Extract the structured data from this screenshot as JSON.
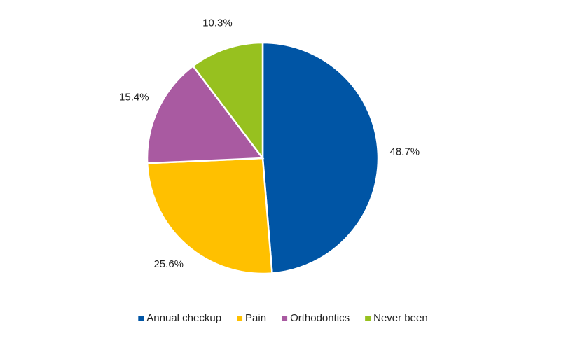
{
  "chart_data": {
    "type": "pie",
    "categories": [
      "Annual checkup",
      "Pain",
      "Orthodontics",
      "Never been"
    ],
    "values": [
      48.7,
      25.6,
      15.4,
      10.3
    ],
    "value_labels": [
      "48.7%",
      "25.6%",
      "15.4%",
      "10.3%"
    ],
    "colors": [
      "#0055a5",
      "#ffc000",
      "#a95aa1",
      "#97c11f"
    ],
    "legend": "bottom"
  }
}
